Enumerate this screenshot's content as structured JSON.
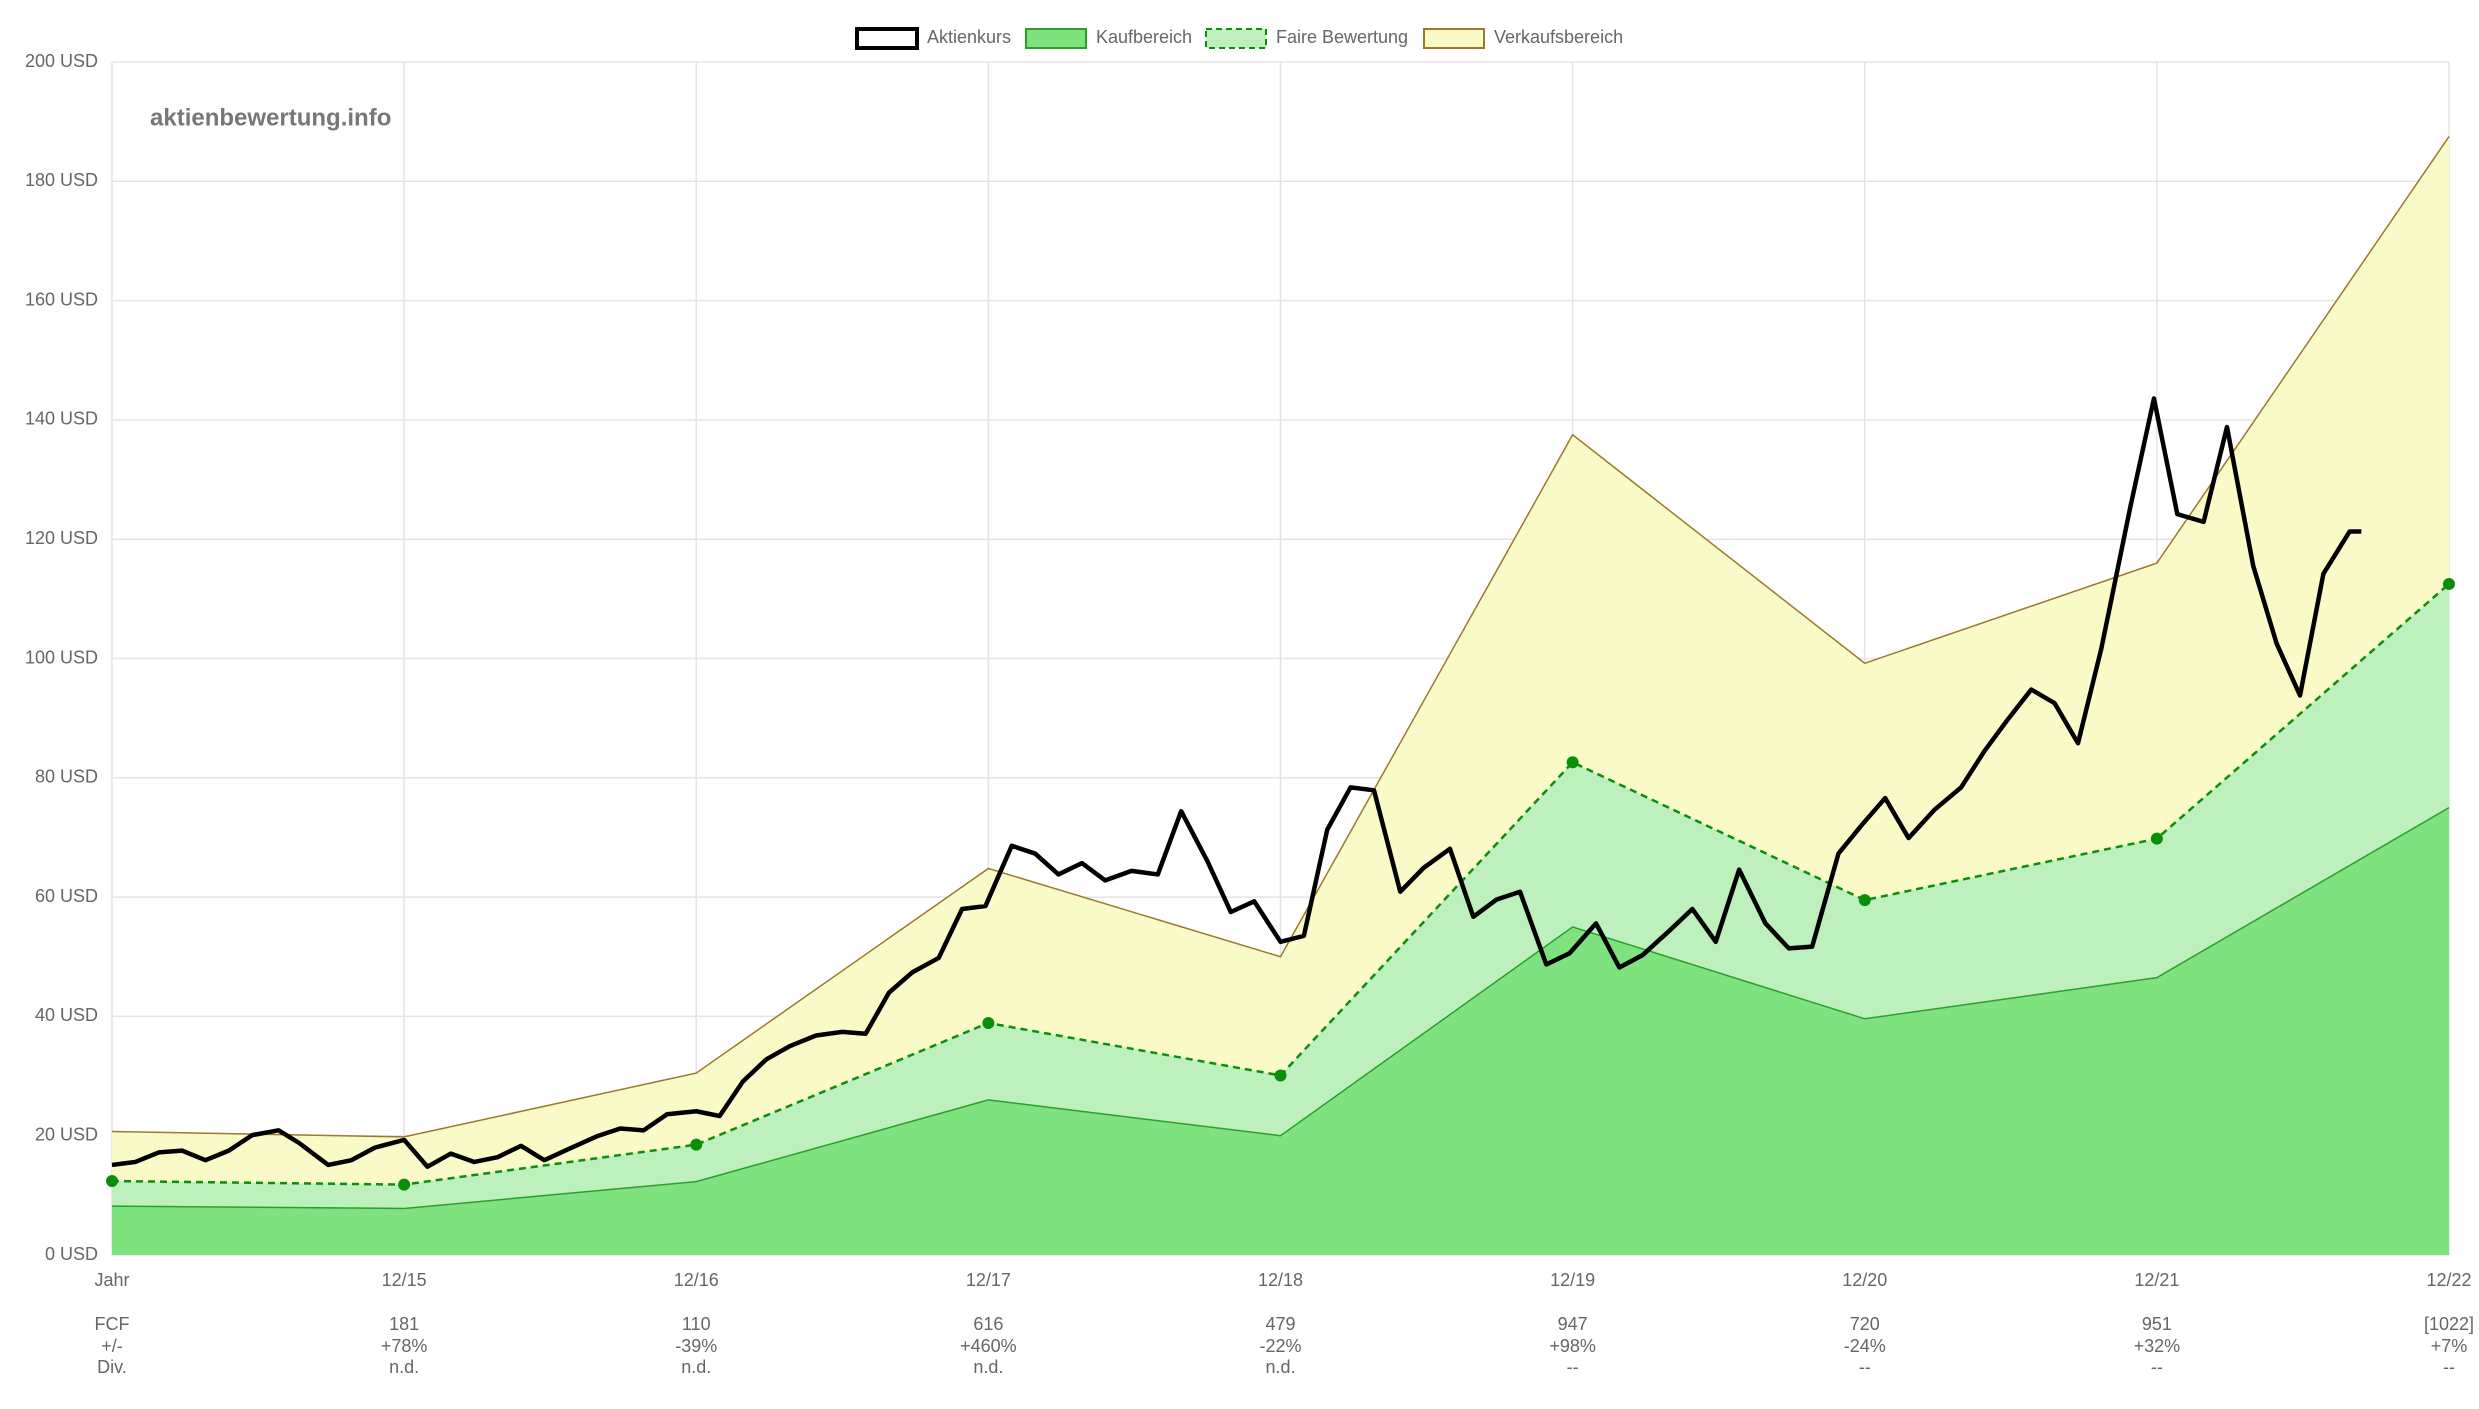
{
  "chart_data": {
    "type": "area",
    "watermark": "aktienbewertung.info",
    "xlim": [
      0,
      8
    ],
    "xticks": [
      {
        "value": 0,
        "label": "Jahr"
      },
      {
        "value": 1,
        "label": "12/15"
      },
      {
        "value": 2,
        "label": "12/16"
      },
      {
        "value": 3,
        "label": "12/17"
      },
      {
        "value": 4,
        "label": "12/18"
      },
      {
        "value": 5,
        "label": "12/19"
      },
      {
        "value": 6,
        "label": "12/20"
      },
      {
        "value": 7,
        "label": "12/21"
      },
      {
        "value": 8,
        "label": "12/22"
      }
    ],
    "ylim": [
      0,
      200
    ],
    "yticks": [
      {
        "value": 0,
        "label": "0 USD"
      },
      {
        "value": 20,
        "label": "20 USD"
      },
      {
        "value": 40,
        "label": "40 USD"
      },
      {
        "value": 60,
        "label": "60 USD"
      },
      {
        "value": 80,
        "label": "80 USD"
      },
      {
        "value": 100,
        "label": "100 USD"
      },
      {
        "value": 120,
        "label": "120 USD"
      },
      {
        "value": 140,
        "label": "140 USD"
      },
      {
        "value": 160,
        "label": "160 USD"
      },
      {
        "value": 180,
        "label": "180 USD"
      },
      {
        "value": 200,
        "label": "200 USD"
      }
    ],
    "grid": true,
    "legend": "top",
    "series": [
      {
        "name": "Aktienkurs",
        "kind": "line",
        "color": "#000000",
        "fill": "#ffffff",
        "x": [
          0,
          0.08,
          0.16,
          0.24,
          0.32,
          0.4,
          0.48,
          0.57,
          0.64,
          0.74,
          0.82,
          0.9,
          1.0,
          1.08,
          1.16,
          1.24,
          1.32,
          1.4,
          1.48,
          1.56,
          1.66,
          1.74,
          1.82,
          1.9,
          2.0,
          2.08,
          2.16,
          2.24,
          2.32,
          2.41,
          2.5,
          2.58,
          2.66,
          2.74,
          2.83,
          2.91,
          2.99,
          3.08,
          3.16,
          3.24,
          3.32,
          3.4,
          3.49,
          3.58,
          3.66,
          3.75,
          3.83,
          3.91,
          4.0,
          4.08,
          4.16,
          4.24,
          4.32,
          4.41,
          4.49,
          4.58,
          4.66,
          4.74,
          4.82,
          4.91,
          4.99,
          5.08,
          5.16,
          5.24,
          5.33,
          5.41,
          5.49,
          5.57,
          5.66,
          5.74,
          5.82,
          5.91,
          5.99,
          6.07,
          6.15,
          6.24,
          6.33,
          6.41,
          6.49,
          6.57,
          6.65,
          6.73,
          6.81,
          6.91,
          6.99,
          7.07,
          7.16,
          7.24,
          7.33,
          7.41,
          7.49,
          7.57,
          7.66,
          7.7
        ],
        "values": [
          15.1,
          15.6,
          17.2,
          17.5,
          15.9,
          17.5,
          20.1,
          20.9,
          18.8,
          15.1,
          15.9,
          18.0,
          19.3,
          14.8,
          17.0,
          15.6,
          16.4,
          18.3,
          15.9,
          17.7,
          19.9,
          21.2,
          20.9,
          23.6,
          24.1,
          23.3,
          29.1,
          32.8,
          35.0,
          36.8,
          37.4,
          37.1,
          44.0,
          47.4,
          49.8,
          58.0,
          58.5,
          68.6,
          67.3,
          63.8,
          65.7,
          62.8,
          64.4,
          63.8,
          74.4,
          66.0,
          57.5,
          59.3,
          52.5,
          53.5,
          71.3,
          78.4,
          77.9,
          60.9,
          64.9,
          68.1,
          56.7,
          59.6,
          60.9,
          48.7,
          50.6,
          55.6,
          48.2,
          50.3,
          54.3,
          58.0,
          52.5,
          64.6,
          55.6,
          51.4,
          51.7,
          67.3,
          72.1,
          76.6,
          69.9,
          74.7,
          78.4,
          84.5,
          89.8,
          94.8,
          92.5,
          85.8,
          101.7,
          125.6,
          143.6,
          124.2,
          122.9,
          138.8,
          115.5,
          102.5,
          93.8,
          114.2,
          121.3,
          121.3
        ]
      },
      {
        "name": "Kaufbereich",
        "kind": "area",
        "color": "#2e9e2e",
        "fill": "#7ee27e",
        "x": [
          0,
          1,
          2,
          3,
          4,
          5,
          6,
          7,
          8
        ],
        "values": [
          8.2,
          7.8,
          12.3,
          26,
          20,
          55,
          39.6,
          46.5,
          75
        ]
      },
      {
        "name": "Faire Bewertung",
        "kind": "area",
        "dashed": true,
        "markers": true,
        "color": "#0a8f0a",
        "fill": "#bdf0bd",
        "x": [
          0,
          1,
          2,
          3,
          4,
          5,
          6,
          7,
          8
        ],
        "values": [
          12.4,
          11.8,
          18.5,
          38.9,
          30.1,
          82.6,
          59.5,
          69.8,
          112.5
        ]
      },
      {
        "name": "Verkaufsbereich",
        "kind": "area",
        "color": "#9a7a2a",
        "fill": "#fafac8",
        "x": [
          0,
          1,
          2,
          3,
          4,
          5,
          6,
          7,
          8
        ],
        "values": [
          20.7,
          19.8,
          30.5,
          64.8,
          50,
          137.5,
          99.2,
          116,
          187.5
        ]
      }
    ],
    "table": {
      "row_labels": [
        "FCF",
        "+/-",
        "Div."
      ],
      "columns": [
        [
          "181",
          "+78%",
          "n.d."
        ],
        [
          "110",
          "-39%",
          "n.d."
        ],
        [
          "616",
          "+460%",
          "n.d."
        ],
        [
          "479",
          "-22%",
          "n.d."
        ],
        [
          "947",
          "+98%",
          "--"
        ],
        [
          "720",
          "-24%",
          "--"
        ],
        [
          "951",
          "+32%",
          "--"
        ],
        [
          "[1022]",
          "+7%",
          "--"
        ]
      ]
    }
  }
}
